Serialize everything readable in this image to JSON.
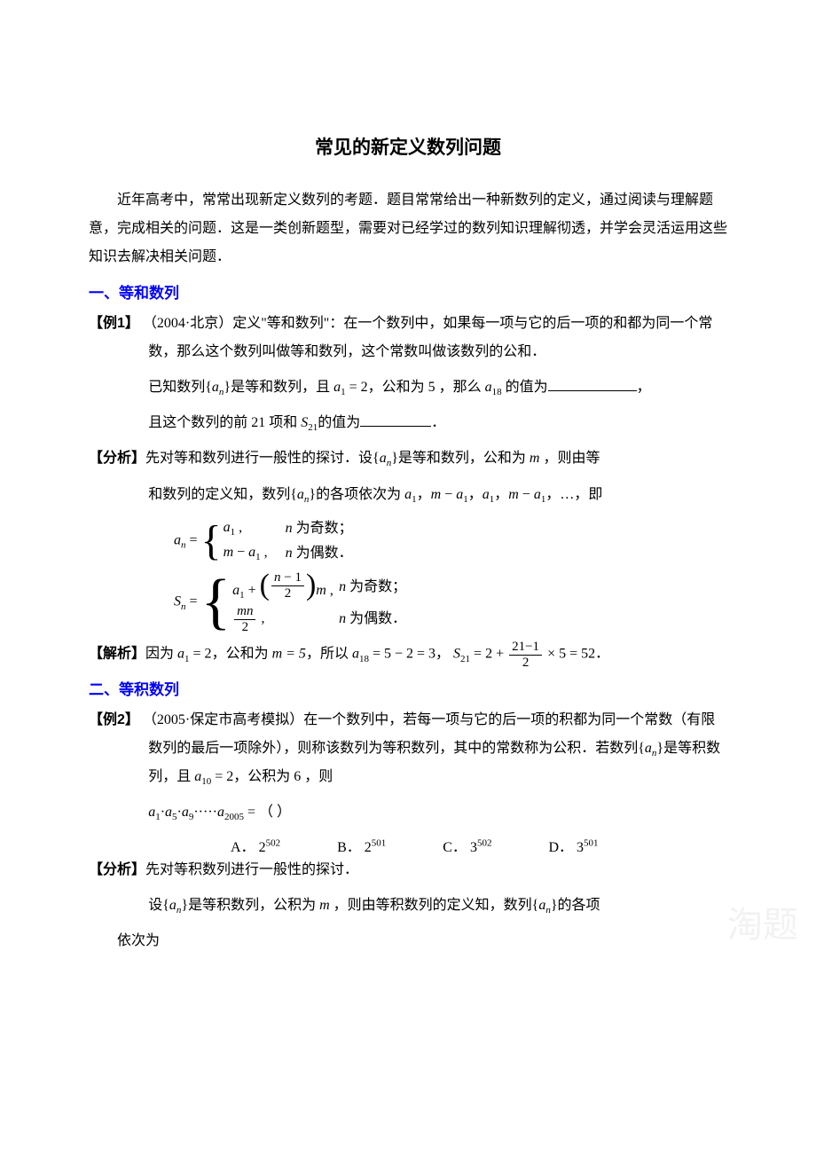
{
  "title": "常见的新定义数列问题",
  "intro": "近年高考中，常常出现新定义数列的考题．题目常常给出一种新数列的定义，通过阅读与理解题意，完成相关的问题．这是一类创新题型，需要对已经学过的数列知识理解彻透，并学会灵活运用这些知识去解决相关问题．",
  "section1": {
    "heading": "一、等和数列",
    "ex_label": "【例1】",
    "ex_source": "（2004·北京）",
    "ex_body1": "定义\"等和数列\"：在一个数列中，如果每一项与它的后一项的和都为同一个常数，那么这个数列叫做等和数列，这个常数叫做该数列的公和．",
    "ex_body2_pre": "已知数列",
    "ex_body2_mid1": "是等和数列，且",
    "ex_body2_mid2": "，公和为",
    "ex_body2_mid3": "，那么",
    "ex_body2_end": "的值为",
    "ex_comma": "，",
    "ex_body3_pre": "且这个数列的前",
    "ex_body3_n": "21",
    "ex_body3_mid": "项和",
    "ex_body3_end": "的值为",
    "ex_body3_period": "．",
    "a1_eq": "a",
    "a1_sub": "1",
    "a1_val": "= 2",
    "five": "5",
    "a18_sub": "18",
    "s21_sub": "21",
    "an_label": "【分析】",
    "an_body1_pre": "先对等和数列进行一般性的探讨．设",
    "an_body1_mid1": "是等和数列，公和为",
    "an_body1_mid2": "，则由等",
    "an_body2_pre": "和数列的定义知，数列",
    "an_body2_mid": "的各项依次为",
    "an_body2_end": "，…，即",
    "m_var": "m",
    "a_var": "a",
    "n_var": "n",
    "S_var": "S",
    "odd_text": "为奇数；",
    "even_text": "为偶数．",
    "sol_label": "【解析】",
    "sol_pre": "因为",
    "sol_mid1": "，公和为",
    "sol_m5": "m = 5",
    "sol_mid2": "，所以",
    "sol_a18": "= 5 − 2 = 3",
    "sol_mid3": "，",
    "sol_s21_pre": "= 2 +",
    "sol_frac_num": "21−1",
    "sol_frac_den": "2",
    "sol_s21_post": "× 5 = 52",
    "sol_period": "．"
  },
  "section2": {
    "heading": "二、等积数列",
    "ex_label": "【例2】",
    "ex_source": "（2005·保定市高考模拟）",
    "ex_body1": "在一个数列中，若每一项与它的后一项的积都为同一个常数（有限数列的最后一项除外），则称该数列为等积数列，其中的常数称为公积．若数列",
    "ex_body1_mid1": "是等积数列，且",
    "ex_body1_mid2": "，公积为",
    "ex_body1_mid3": "，则",
    "a10_sub": "10",
    "a10_val": "= 2",
    "six": "6",
    "product_terms": "a₁·a₅·a₉·····a₂₀₀₅",
    "paren": "=  （       ）",
    "choices": {
      "A": {
        "label": "A．",
        "base": "2",
        "exp": "502"
      },
      "B": {
        "label": "B．",
        "base": "2",
        "exp": "501"
      },
      "C": {
        "label": "C．",
        "base": "3",
        "exp": "502"
      },
      "D": {
        "label": "D．",
        "base": "3",
        "exp": "501"
      }
    },
    "an_label": "【分析】",
    "an_body1": "先对等积数列进行一般性的探讨．",
    "an_body2_pre": "设",
    "an_body2_mid1": "是等积数列，公积为",
    "an_body2_mid2": "，则由等积数列的定义知，数列",
    "an_body2_end": "的各项",
    "an_body3": "依次为"
  },
  "watermark": "淘题"
}
